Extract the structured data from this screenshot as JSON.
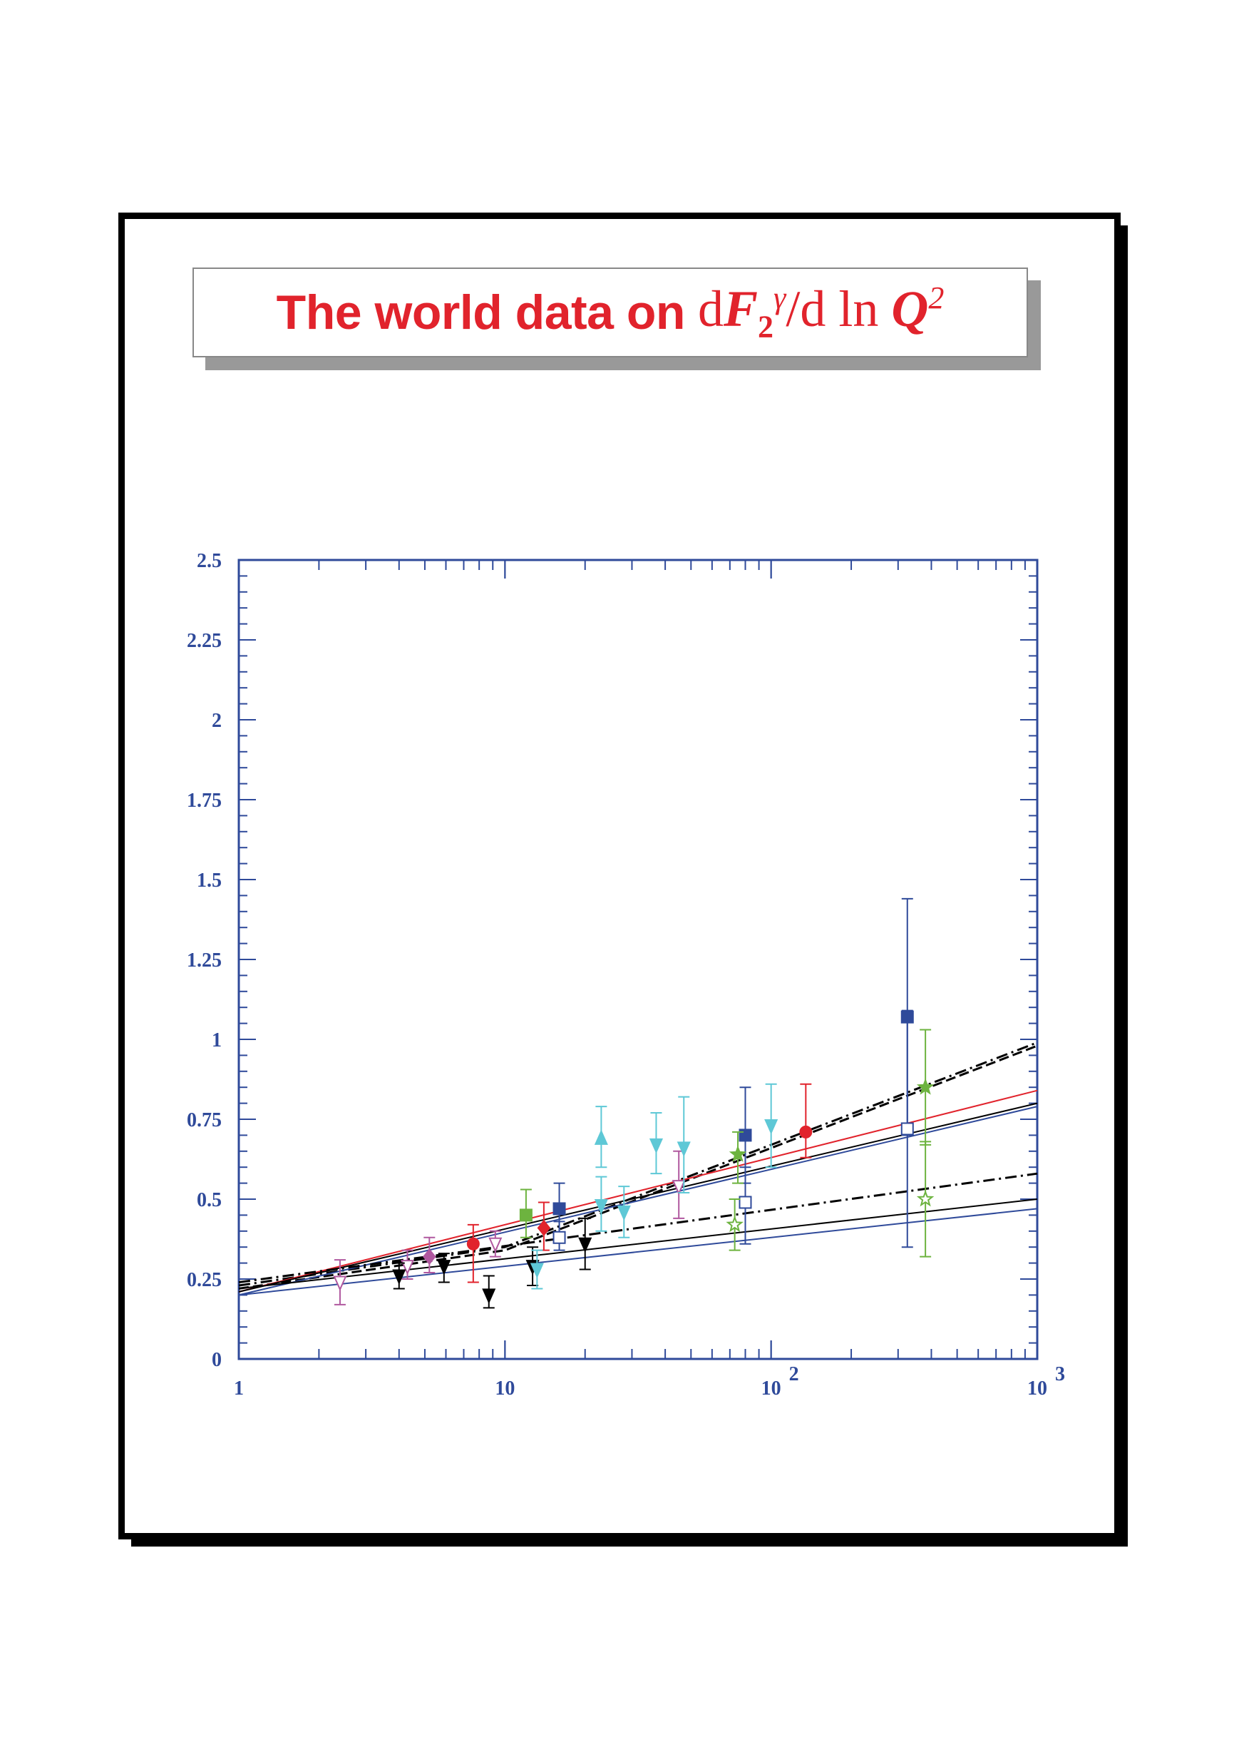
{
  "title": {
    "text": "The world data on",
    "math": "dF2γ/d ln Q2"
  },
  "chart_data": {
    "type": "scatter",
    "title": "The world data on dF2γ/d ln Q2",
    "xlabel": "",
    "ylabel": "",
    "xscale": "log",
    "xlim": [
      1,
      1000
    ],
    "ylim": [
      0,
      2.5
    ],
    "grid": false,
    "xticks": [
      {
        "value": 1,
        "label": "1",
        "sup": ""
      },
      {
        "value": 10,
        "label": "10",
        "sup": ""
      },
      {
        "value": 100,
        "label": "10",
        "sup": "2"
      },
      {
        "value": 1000,
        "label": "10",
        "sup": "3"
      }
    ],
    "yticks": [
      {
        "value": 0,
        "label": "0"
      },
      {
        "value": 0.25,
        "label": "0.25"
      },
      {
        "value": 0.5,
        "label": "0.5"
      },
      {
        "value": 0.75,
        "label": "0.75"
      },
      {
        "value": 1,
        "label": "1"
      },
      {
        "value": 1.25,
        "label": "1.25"
      },
      {
        "value": 1.5,
        "label": "1.5"
      },
      {
        "value": 1.75,
        "label": "1.75"
      },
      {
        "value": 2,
        "label": "2"
      },
      {
        "value": 2.25,
        "label": "2.25"
      },
      {
        "value": 2.5,
        "label": "2.5"
      }
    ],
    "series": [
      {
        "marker": "triangle-down-open",
        "color": "#b0589f",
        "points": [
          {
            "x": 2.4,
            "y": 0.24,
            "lo": 0.17,
            "hi": 0.31
          },
          {
            "x": 4.3,
            "y": 0.29,
            "lo": 0.25,
            "hi": 0.34
          },
          {
            "x": 9.2,
            "y": 0.36,
            "lo": 0.32,
            "hi": 0.4
          },
          {
            "x": 45,
            "y": 0.54,
            "lo": 0.44,
            "hi": 0.65
          }
        ]
      },
      {
        "marker": "diamond",
        "color": "#b0589f",
        "points": [
          {
            "x": 5.2,
            "y": 0.32,
            "lo": 0.27,
            "hi": 0.38
          }
        ]
      },
      {
        "marker": "triangle-down",
        "color": "#000000",
        "points": [
          {
            "x": 4.0,
            "y": 0.26,
            "lo": 0.22,
            "hi": 0.3
          },
          {
            "x": 5.9,
            "y": 0.29,
            "lo": 0.24,
            "hi": 0.33
          },
          {
            "x": 8.7,
            "y": 0.2,
            "lo": 0.16,
            "hi": 0.26
          },
          {
            "x": 12.7,
            "y": 0.29,
            "lo": 0.23,
            "hi": 0.35
          },
          {
            "x": 20,
            "y": 0.36,
            "lo": 0.28,
            "hi": 0.44
          }
        ]
      },
      {
        "marker": "circle",
        "color": "#e1232c",
        "points": [
          {
            "x": 7.6,
            "y": 0.36,
            "lo": 0.24,
            "hi": 0.42
          },
          {
            "x": 135,
            "y": 0.71,
            "lo": 0.63,
            "hi": 0.86
          }
        ]
      },
      {
        "marker": "diamond",
        "color": "#e1232c",
        "points": [
          {
            "x": 14,
            "y": 0.41,
            "lo": 0.34,
            "hi": 0.49
          }
        ]
      },
      {
        "marker": "square",
        "color": "#6db33f",
        "points": [
          {
            "x": 12,
            "y": 0.45,
            "lo": 0.38,
            "hi": 0.53
          }
        ]
      },
      {
        "marker": "square",
        "color": "#2f4a9a",
        "points": [
          {
            "x": 16,
            "y": 0.47,
            "lo": 0.39,
            "hi": 0.55
          },
          {
            "x": 80,
            "y": 0.7,
            "lo": 0.55,
            "hi": 0.85
          },
          {
            "x": 325,
            "y": 1.07,
            "lo": 0.7,
            "hi": 1.44
          }
        ]
      },
      {
        "marker": "square-open",
        "color": "#2f4a9a",
        "points": [
          {
            "x": 16,
            "y": 0.38,
            "lo": 0.34,
            "hi": 0.43
          },
          {
            "x": 80,
            "y": 0.49,
            "lo": 0.36,
            "hi": 0.6
          },
          {
            "x": 325,
            "y": 0.72,
            "lo": 0.35,
            "hi": 1.09
          }
        ]
      },
      {
        "marker": "triangle-up",
        "color": "#5ec8d6",
        "points": [
          {
            "x": 23,
            "y": 0.69,
            "lo": 0.6,
            "hi": 0.79
          }
        ]
      },
      {
        "marker": "triangle-down",
        "color": "#5ec8d6",
        "points": [
          {
            "x": 13.2,
            "y": 0.28,
            "lo": 0.22,
            "hi": 0.34
          },
          {
            "x": 23,
            "y": 0.48,
            "lo": 0.4,
            "hi": 0.57
          },
          {
            "x": 28,
            "y": 0.46,
            "lo": 0.38,
            "hi": 0.54
          },
          {
            "x": 37,
            "y": 0.67,
            "lo": 0.58,
            "hi": 0.77
          },
          {
            "x": 47,
            "y": 0.66,
            "lo": 0.52,
            "hi": 0.82
          },
          {
            "x": 100,
            "y": 0.73,
            "lo": 0.6,
            "hi": 0.86
          }
        ]
      },
      {
        "marker": "star",
        "color": "#6db33f",
        "points": [
          {
            "x": 75,
            "y": 0.64,
            "lo": 0.55,
            "hi": 0.71
          },
          {
            "x": 380,
            "y": 0.85,
            "lo": 0.67,
            "hi": 1.03
          }
        ]
      },
      {
        "marker": "star-open",
        "color": "#6db33f",
        "points": [
          {
            "x": 73,
            "y": 0.42,
            "lo": 0.34,
            "hi": 0.5
          },
          {
            "x": 380,
            "y": 0.5,
            "lo": 0.32,
            "hi": 0.68
          }
        ]
      }
    ],
    "lines": [
      {
        "style": "dashdot",
        "color": "#000000",
        "points": [
          [
            1,
            0.23
          ],
          [
            10,
            0.35
          ],
          [
            1000,
            0.99
          ]
        ]
      },
      {
        "style": "dashed",
        "color": "#000000",
        "points": [
          [
            1,
            0.22
          ],
          [
            10,
            0.34
          ],
          [
            1000,
            0.98
          ]
        ]
      },
      {
        "style": "solid",
        "color": "#e1232c",
        "points": [
          [
            1,
            0.21
          ],
          [
            1000,
            0.84
          ]
        ]
      },
      {
        "style": "solid",
        "color": "#000000",
        "points": [
          [
            1,
            0.21
          ],
          [
            1000,
            0.8
          ]
        ]
      },
      {
        "style": "solid",
        "color": "#2f4a9a",
        "points": [
          [
            1,
            0.2
          ],
          [
            1000,
            0.79
          ]
        ]
      },
      {
        "style": "dashdot",
        "color": "#000000",
        "points": [
          [
            1,
            0.24
          ],
          [
            1000,
            0.58
          ]
        ]
      },
      {
        "style": "solid",
        "color": "#000000",
        "points": [
          [
            1,
            0.22
          ],
          [
            1000,
            0.5
          ]
        ]
      },
      {
        "style": "solid",
        "color": "#2f4a9a",
        "points": [
          [
            1,
            0.2
          ],
          [
            1000,
            0.47
          ]
        ]
      }
    ],
    "colors": {
      "axis": "#2f4a9a",
      "title": "#e1232c"
    }
  }
}
